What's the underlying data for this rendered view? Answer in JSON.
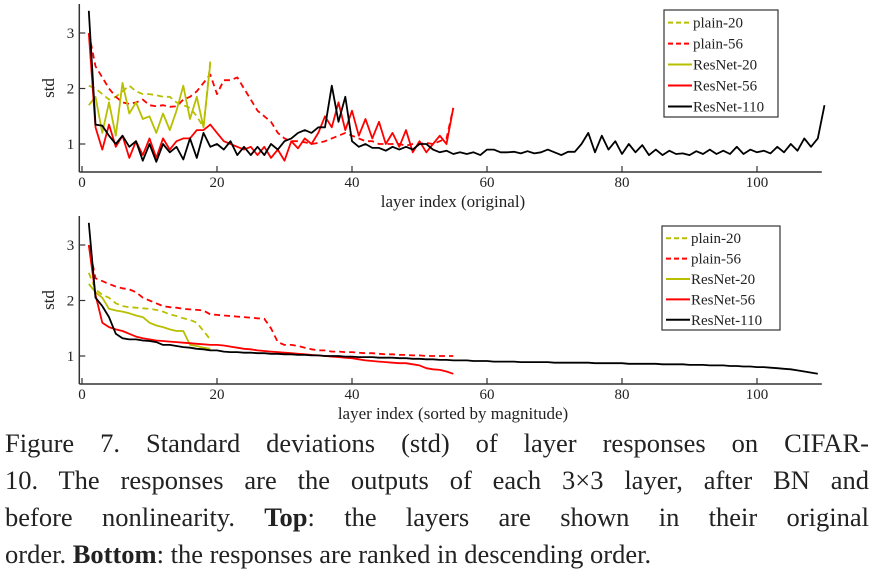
{
  "colors": {
    "plain-20": "#b8bf00",
    "plain-56": "#ff0000",
    "ResNet-20": "#b8bf00",
    "ResNet-56": "#ff0000",
    "ResNet-110": "#000000"
  },
  "chart_data": [
    {
      "type": "line",
      "xlabel": "layer index (original)",
      "ylabel": "std",
      "xlim": [
        0,
        110
      ],
      "ylim": [
        0.5,
        3.5
      ],
      "xticks": [
        "0",
        "20",
        "40",
        "60",
        "80",
        "100"
      ],
      "yticks": [
        "1",
        "2",
        "3"
      ],
      "legend_position": "top-right",
      "grid": false,
      "series": [
        {
          "name": "plain-20",
          "style": "dashed",
          "values": [
            2.05,
            2.0,
            1.9,
            1.8,
            1.85,
            1.95,
            2.05,
            1.95,
            1.9,
            1.9,
            1.88,
            1.85,
            1.85,
            1.75,
            1.7,
            1.65,
            1.5,
            1.3,
            2.5
          ]
        },
        {
          "name": "plain-56",
          "style": "dashed",
          "values": [
            3.0,
            2.4,
            2.2,
            2.0,
            1.85,
            1.75,
            1.72,
            1.75,
            1.8,
            1.7,
            1.68,
            1.7,
            1.67,
            1.68,
            1.8,
            1.85,
            1.95,
            2.1,
            2.25,
            1.9,
            2.15,
            2.15,
            2.2,
            2.0,
            1.8,
            1.6,
            1.5,
            1.4,
            1.2,
            1.1,
            1.05,
            1.05,
            1.03,
            1.0,
            1.02,
            1.05,
            1.1,
            1.15,
            1.2,
            1.15,
            1.1,
            1.05,
            1.05,
            1.0,
            1.0,
            1.0,
            1.0,
            0.97,
            1.0,
            1.0,
            1.02,
            1.0,
            1.05,
            1.1,
            1.65
          ]
        },
        {
          "name": "ResNet-20",
          "style": "solid",
          "values": [
            1.7,
            1.85,
            1.2,
            1.75,
            1.15,
            2.1,
            1.55,
            1.75,
            1.45,
            1.5,
            1.2,
            1.55,
            1.25,
            1.6,
            2.05,
            1.45,
            1.85,
            1.3,
            2.45
          ]
        },
        {
          "name": "ResNet-56",
          "style": "solid",
          "values": [
            3.0,
            1.3,
            0.9,
            1.35,
            0.95,
            1.15,
            0.75,
            1.05,
            0.8,
            1.1,
            0.75,
            1.1,
            0.9,
            1.05,
            1.1,
            1.1,
            1.25,
            1.25,
            1.35,
            1.2,
            1.05,
            1.0,
            0.95,
            0.9,
            0.95,
            0.8,
            0.95,
            0.75,
            0.9,
            0.7,
            1.05,
            0.92,
            1.1,
            1.0,
            1.2,
            1.5,
            1.3,
            1.75,
            1.25,
            1.6,
            1.15,
            1.45,
            1.1,
            1.4,
            1.0,
            1.2,
            0.95,
            1.25,
            0.85,
            1.05,
            0.85,
            1.0,
            1.15,
            1.0,
            1.65
          ]
        },
        {
          "name": "ResNet-110",
          "style": "solid",
          "values": [
            3.4,
            1.35,
            1.33,
            1.15,
            1.0,
            1.15,
            0.95,
            1.05,
            0.7,
            1.0,
            0.68,
            1.0,
            0.85,
            0.95,
            0.72,
            1.1,
            0.75,
            1.2,
            0.95,
            1.0,
            0.9,
            1.05,
            0.8,
            0.95,
            0.8,
            0.95,
            0.8,
            1.0,
            0.9,
            1.05,
            1.1,
            1.2,
            1.25,
            1.2,
            1.3,
            1.3,
            2.05,
            1.4,
            1.85,
            1.05,
            0.95,
            1.0,
            0.93,
            0.93,
            0.88,
            0.95,
            0.9,
            0.95,
            0.9,
            1.0,
            1.0,
            0.9,
            0.85,
            0.88,
            0.82,
            0.85,
            0.82,
            0.85,
            0.8,
            0.9,
            0.9,
            0.85,
            0.85,
            0.86,
            0.83,
            0.87,
            0.83,
            0.85,
            0.9,
            0.85,
            0.8,
            0.86,
            0.86,
            1.0,
            1.2,
            0.85,
            1.15,
            0.9,
            1.05,
            0.82,
            1.0,
            0.85,
            0.98,
            0.8,
            0.9,
            0.8,
            0.88,
            0.82,
            0.83,
            0.8,
            0.87,
            0.82,
            0.9,
            0.82,
            0.88,
            0.82,
            0.95,
            0.82,
            0.9,
            0.85,
            0.88,
            0.83,
            0.95,
            0.85,
            1.0,
            0.88,
            1.1,
            0.95,
            1.1,
            1.7
          ]
        }
      ]
    },
    {
      "type": "line",
      "xlabel": "layer index (sorted by magnitude)",
      "ylabel": "std",
      "xlim": [
        0,
        110
      ],
      "ylim": [
        0.5,
        3.5
      ],
      "xticks": [
        "0",
        "20",
        "40",
        "60",
        "80",
        "100"
      ],
      "yticks": [
        "1",
        "2",
        "3"
      ],
      "legend_position": "top-right",
      "grid": false,
      "series": [
        {
          "name": "plain-20",
          "style": "dashed",
          "values": [
            2.5,
            2.2,
            2.1,
            2.05,
            1.95,
            1.9,
            1.88,
            1.87,
            1.86,
            1.85,
            1.83,
            1.8,
            1.75,
            1.72,
            1.68,
            1.65,
            1.6,
            1.45,
            1.3
          ]
        },
        {
          "name": "plain-56",
          "style": "dashed",
          "values": [
            3.0,
            2.4,
            2.35,
            2.3,
            2.25,
            2.22,
            2.2,
            2.15,
            2.05,
            2.0,
            1.95,
            1.9,
            1.88,
            1.87,
            1.85,
            1.84,
            1.83,
            1.82,
            1.75,
            1.74,
            1.73,
            1.72,
            1.71,
            1.7,
            1.69,
            1.68,
            1.67,
            1.5,
            1.25,
            1.2,
            1.2,
            1.18,
            1.15,
            1.12,
            1.1,
            1.1,
            1.08,
            1.08,
            1.07,
            1.07,
            1.06,
            1.05,
            1.05,
            1.04,
            1.03,
            1.03,
            1.02,
            1.02,
            1.01,
            1.01,
            1.0,
            1.0,
            1.0,
            1.0,
            1.0
          ]
        },
        {
          "name": "ResNet-20",
          "style": "solid",
          "values": [
            2.3,
            2.15,
            2.05,
            1.85,
            1.82,
            1.8,
            1.77,
            1.73,
            1.7,
            1.6,
            1.55,
            1.52,
            1.48,
            1.45,
            1.45,
            1.2,
            1.18,
            1.15,
            1.13
          ]
        },
        {
          "name": "ResNet-56",
          "style": "solid",
          "values": [
            3.0,
            2.1,
            1.6,
            1.52,
            1.48,
            1.45,
            1.4,
            1.35,
            1.32,
            1.3,
            1.28,
            1.27,
            1.26,
            1.25,
            1.24,
            1.23,
            1.22,
            1.21,
            1.2,
            1.2,
            1.19,
            1.17,
            1.15,
            1.13,
            1.12,
            1.1,
            1.09,
            1.08,
            1.07,
            1.06,
            1.05,
            1.04,
            1.03,
            1.02,
            1.01,
            1.0,
            0.99,
            0.98,
            0.97,
            0.96,
            0.94,
            0.92,
            0.91,
            0.9,
            0.89,
            0.88,
            0.87,
            0.87,
            0.85,
            0.83,
            0.78,
            0.76,
            0.75,
            0.72,
            0.68
          ]
        },
        {
          "name": "ResNet-110",
          "style": "solid",
          "values": [
            3.4,
            2.05,
            1.9,
            1.7,
            1.4,
            1.32,
            1.3,
            1.3,
            1.28,
            1.27,
            1.25,
            1.2,
            1.2,
            1.18,
            1.16,
            1.15,
            1.13,
            1.12,
            1.1,
            1.1,
            1.08,
            1.07,
            1.07,
            1.06,
            1.06,
            1.05,
            1.05,
            1.04,
            1.04,
            1.03,
            1.03,
            1.02,
            1.02,
            1.01,
            1.01,
            1.0,
            1.0,
            1.0,
            0.99,
            0.99,
            0.98,
            0.98,
            0.98,
            0.97,
            0.97,
            0.97,
            0.96,
            0.96,
            0.95,
            0.95,
            0.94,
            0.94,
            0.93,
            0.93,
            0.92,
            0.92,
            0.92,
            0.91,
            0.91,
            0.91,
            0.9,
            0.9,
            0.9,
            0.9,
            0.89,
            0.89,
            0.89,
            0.89,
            0.89,
            0.88,
            0.88,
            0.88,
            0.88,
            0.88,
            0.88,
            0.87,
            0.87,
            0.87,
            0.87,
            0.87,
            0.86,
            0.86,
            0.86,
            0.86,
            0.86,
            0.85,
            0.85,
            0.85,
            0.85,
            0.84,
            0.84,
            0.84,
            0.83,
            0.83,
            0.83,
            0.82,
            0.82,
            0.81,
            0.81,
            0.8,
            0.8,
            0.79,
            0.78,
            0.77,
            0.76,
            0.74,
            0.72,
            0.7,
            0.68
          ]
        }
      ]
    }
  ],
  "caption": {
    "line1": "Figure 7. Standard deviations (std) of layer responses on CIFAR-",
    "line2": "10. The responses are the outputs of each 3×3 layer, after BN and",
    "line3_a": "before nonlinearity. ",
    "line3_bold": "Top",
    "line3_b": ": the layers are shown in their original",
    "line4_a": "order. ",
    "line4_bold": "Bottom",
    "line4_b": ": the responses are ranked in descending order."
  }
}
